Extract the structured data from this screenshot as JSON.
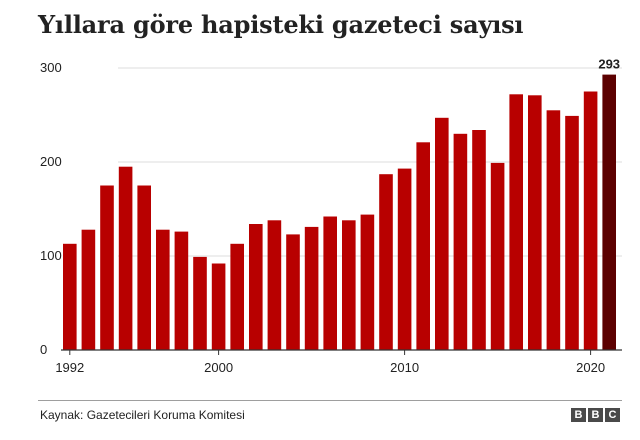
{
  "title": "Yıllara göre hapisteki gazeteci sayısı",
  "source": "Kaynak: Gazetecileri Koruma Komitesi",
  "logo": [
    "B",
    "B",
    "C"
  ],
  "colors": {
    "bar": "#b80000",
    "highlight": "#5c0000",
    "grid": "#dcdcdc",
    "text": "#222222"
  },
  "chart_data": {
    "type": "bar",
    "title": "Yıllara göre hapisteki gazeteci sayısı",
    "xlabel": "",
    "ylabel": "",
    "categories": [
      1992,
      1993,
      1994,
      1995,
      1996,
      1997,
      1998,
      1999,
      2000,
      2001,
      2002,
      2003,
      2004,
      2005,
      2006,
      2007,
      2008,
      2009,
      2010,
      2011,
      2012,
      2013,
      2014,
      2015,
      2016,
      2017,
      2018,
      2019,
      2020,
      2021
    ],
    "values": [
      113,
      128,
      175,
      195,
      175,
      128,
      126,
      99,
      92,
      113,
      134,
      138,
      123,
      131,
      142,
      138,
      144,
      187,
      193,
      221,
      247,
      230,
      234,
      199,
      272,
      271,
      255,
      249,
      275,
      293
    ],
    "x_tick_labels": [
      "1992",
      "2000",
      "2010",
      "2020"
    ],
    "y_ticks": [
      0,
      100,
      200,
      300
    ],
    "ylim": [
      0,
      300
    ],
    "highlight": {
      "category": 2021,
      "label": "293"
    },
    "grid": true
  }
}
